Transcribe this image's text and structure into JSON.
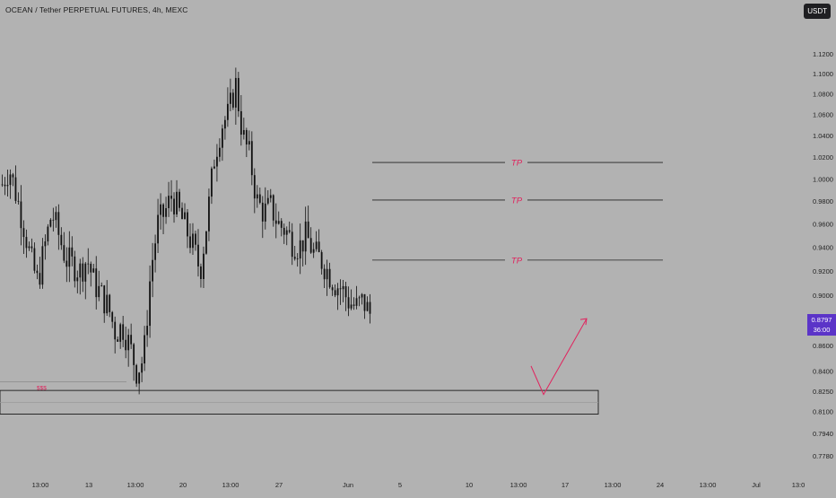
{
  "header": {
    "title": "OCEAN / Tether PERPETUAL FUTURES, 4h, MEXC",
    "currency_label": "USDT"
  },
  "price_tag": {
    "price": "0.8797",
    "countdown": "36:00"
  },
  "colors": {
    "background": "#b2b2b2",
    "candle": "#111111",
    "tp_label": "#e0245e",
    "arrow": "#e0245e",
    "price_tag": "#5b34c8"
  },
  "chart_data": {
    "type": "candlestick",
    "y_scale": "log",
    "ylim": [
      0.775,
      1.13
    ],
    "y_ticks": [
      "1.1200",
      "1.1000",
      "1.0800",
      "1.0600",
      "1.0400",
      "1.0200",
      "1.0000",
      "0.9800",
      "0.9600",
      "0.9400",
      "0.9200",
      "0.9000",
      "0.8797",
      "0.8600",
      "0.8400",
      "0.8250",
      "0.8100",
      "0.7940",
      "0.7780"
    ],
    "x_ticks": [
      "13:00",
      "13",
      "13:00",
      "20",
      "13:00",
      "27",
      "Jun",
      "5",
      "10",
      "13:00",
      "17",
      "13:00",
      "24",
      "13:00",
      "Jul",
      "13:0"
    ],
    "close_path": [
      0.995,
      1.01,
      0.985,
      0.96,
      0.93,
      0.91,
      0.94,
      0.97,
      0.95,
      0.93,
      0.925,
      0.92,
      0.93,
      0.91,
      0.9,
      0.89,
      0.87,
      0.875,
      0.86,
      0.84,
      0.85,
      0.92,
      0.96,
      0.97,
      0.985,
      0.97,
      0.955,
      0.94,
      0.92,
      0.965,
      1.02,
      1.05,
      1.06,
      1.09,
      1.04,
      1.02,
      0.98,
      0.97,
      0.975,
      0.96,
      0.955,
      0.945,
      0.94,
      0.95,
      0.935,
      0.93,
      0.92,
      0.91,
      0.905,
      0.895,
      0.89,
      0.895,
      0.885
    ],
    "annotations": {
      "tp_lines": [
        {
          "label": "TP",
          "price": 1.015
        },
        {
          "label": "TP",
          "price": 0.981
        },
        {
          "label": "TP",
          "price": 0.929
        }
      ],
      "liquidity_label": "$$$",
      "liquidity_level": 0.832,
      "demand_zone": {
        "top": 0.8255,
        "mid": 0.8165,
        "bottom": 0.808
      },
      "projection_arrow": {
        "points": [
          0.844,
          0.8225,
          0.881
        ]
      }
    }
  }
}
